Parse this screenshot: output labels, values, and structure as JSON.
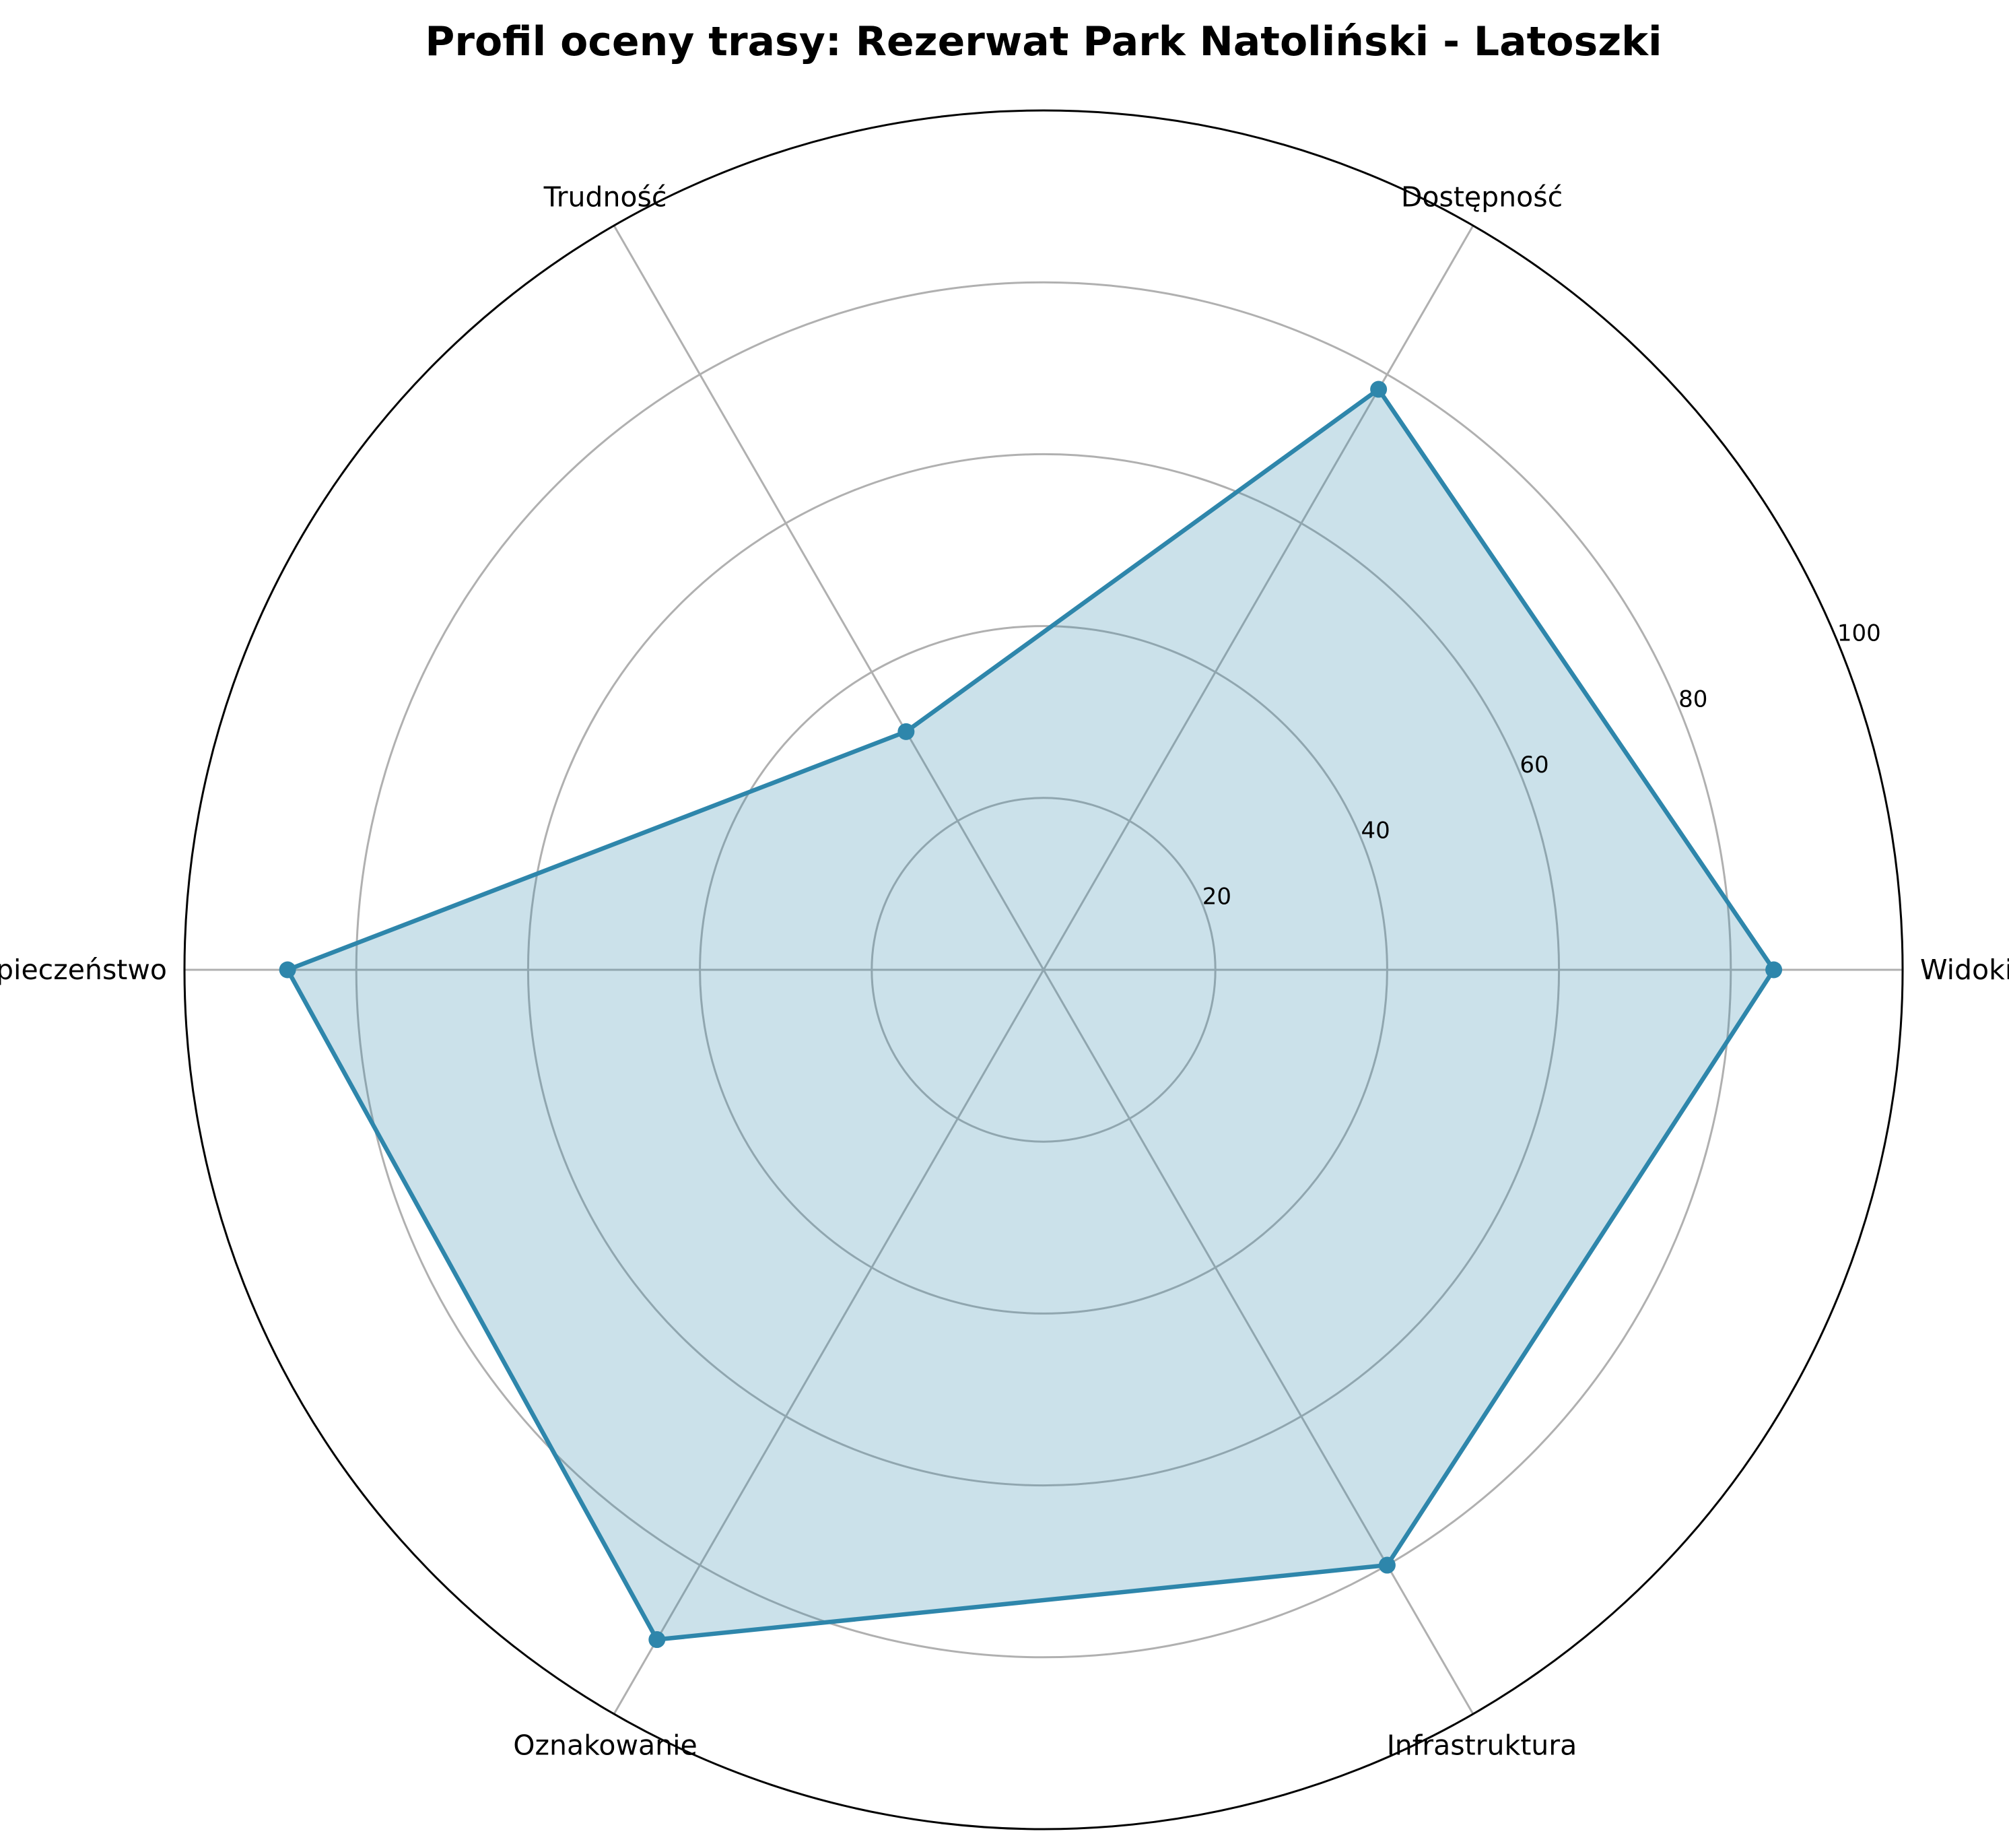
{
  "chart_data": {
    "type": "radar",
    "title": "Profil oceny trasy: Rezerwat Park Natoliński - Latoszki",
    "categories": [
      "Widoki",
      "Dostępność",
      "Trudność",
      "Bezpieczeństwo",
      "Oznakowanie",
      "Infrastruktura"
    ],
    "series": [
      {
        "values": [
          85,
          78,
          32,
          88,
          90,
          80
        ]
      }
    ],
    "rlim": [
      0,
      100
    ],
    "rticks": [
      20,
      40,
      60,
      80,
      100
    ],
    "rtick_labels": [
      "20",
      "40",
      "60",
      "80",
      "100"
    ],
    "grid": true,
    "colors": {
      "line": "#2e86ab",
      "fill": "#2e86ab",
      "fill_opacity": 0.25
    }
  }
}
